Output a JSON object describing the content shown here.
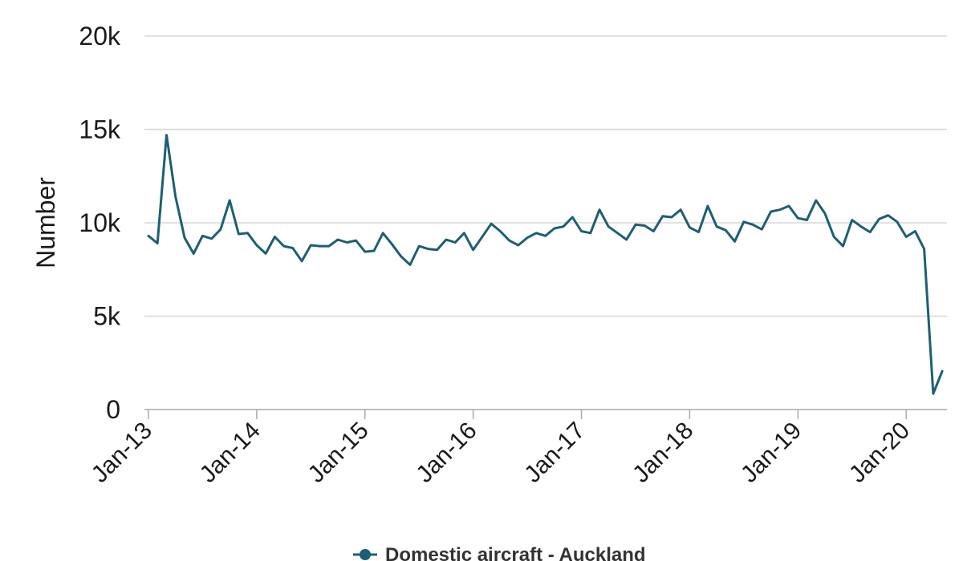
{
  "chart_data": {
    "type": "line",
    "ylabel": "Number",
    "y_ticks": [
      "0",
      "5k",
      "10k",
      "15k",
      "20k"
    ],
    "ylim": [
      0,
      20000
    ],
    "x_ticks": [
      "Jan-13",
      "Jan-14",
      "Jan-15",
      "Jan-16",
      "Jan-17",
      "Jan-18",
      "Jan-19",
      "Jan-20"
    ],
    "x_start": "Jan-13",
    "x_interval": "month",
    "grid": true,
    "legend_position": "bottom",
    "colors": {
      "series": "#1d5f73",
      "grid": "#d8d8d8",
      "axis": "#aaaaaa"
    },
    "series": [
      {
        "name": "Domestic aircraft - Auckland",
        "values": [
          9300,
          8900,
          14700,
          11400,
          9200,
          8350,
          9300,
          9150,
          9650,
          11200,
          9400,
          9450,
          8800,
          8350,
          9250,
          8750,
          8650,
          7950,
          8800,
          8750,
          8750,
          9100,
          8950,
          9050,
          8450,
          8500,
          9450,
          8850,
          8200,
          7750,
          8750,
          8600,
          8550,
          9100,
          8950,
          9450,
          8550,
          9250,
          9950,
          9550,
          9050,
          8800,
          9200,
          9450,
          9300,
          9700,
          9800,
          10300,
          9550,
          9450,
          10700,
          9800,
          9450,
          9100,
          9900,
          9850,
          9550,
          10350,
          10300,
          10700,
          9750,
          9500,
          10900,
          9800,
          9600,
          9000,
          10050,
          9900,
          9650,
          10600,
          10700,
          10900,
          10250,
          10150,
          11200,
          10500,
          9250,
          8750,
          10150,
          9800,
          9500,
          10200,
          10400,
          10050,
          9250,
          9550,
          8600,
          850,
          2050
        ]
      }
    ]
  }
}
